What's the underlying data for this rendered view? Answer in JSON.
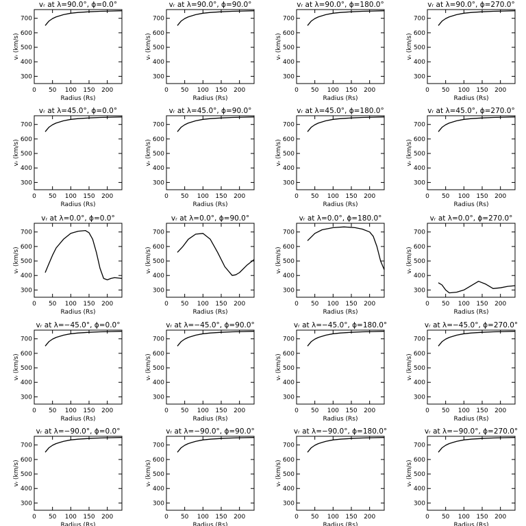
{
  "figure": {
    "xlabel": "Radius (Rs)",
    "ylabel": "vᵣ (km/s)",
    "xticks": [
      0,
      50,
      100,
      150,
      200
    ],
    "yticks": [
      300,
      400,
      500,
      600,
      700
    ],
    "xlim": [
      0,
      240
    ],
    "ylim": [
      250,
      760
    ]
  },
  "chart_data": [
    {
      "type": "line",
      "title": "vᵣ at λ=90.0°, ϕ=0.0°",
      "xlabel": "Radius (Rs)",
      "ylabel": "vᵣ (km/s)",
      "xlim": [
        0,
        240
      ],
      "ylim": [
        250,
        760
      ],
      "series": [
        {
          "x": [
            30,
            40,
            50,
            60,
            80,
            100,
            120,
            150,
            180,
            210,
            240
          ],
          "y": [
            650,
            680,
            698,
            710,
            725,
            735,
            740,
            745,
            748,
            750,
            752
          ]
        }
      ]
    },
    {
      "type": "line",
      "title": "vᵣ at λ=90.0°, ϕ=90.0°",
      "xlabel": "Radius (Rs)",
      "ylabel": "vᵣ (km/s)",
      "xlim": [
        0,
        240
      ],
      "ylim": [
        250,
        760
      ],
      "series": [
        {
          "x": [
            30,
            40,
            50,
            60,
            80,
            100,
            120,
            150,
            180,
            210,
            240
          ],
          "y": [
            650,
            680,
            698,
            710,
            725,
            735,
            740,
            745,
            748,
            750,
            752
          ]
        }
      ]
    },
    {
      "type": "line",
      "title": "vᵣ at λ=90.0°, ϕ=180.0°",
      "xlabel": "Radius (Rs)",
      "ylabel": "vᵣ (km/s)",
      "xlim": [
        0,
        240
      ],
      "ylim": [
        250,
        760
      ],
      "series": [
        {
          "x": [
            30,
            40,
            50,
            60,
            80,
            100,
            120,
            150,
            180,
            210,
            240
          ],
          "y": [
            650,
            680,
            698,
            710,
            725,
            735,
            740,
            745,
            748,
            750,
            752
          ]
        }
      ]
    },
    {
      "type": "line",
      "title": "vᵣ at λ=90.0°, ϕ=270.0°",
      "xlabel": "Radius (Rs)",
      "ylabel": "vᵣ (km/s)",
      "xlim": [
        0,
        240
      ],
      "ylim": [
        250,
        760
      ],
      "series": [
        {
          "x": [
            30,
            40,
            50,
            60,
            80,
            100,
            120,
            150,
            180,
            210,
            240
          ],
          "y": [
            650,
            680,
            698,
            710,
            725,
            735,
            740,
            745,
            748,
            750,
            752
          ]
        }
      ]
    },
    {
      "type": "line",
      "title": "vᵣ at λ=45.0°, ϕ=0.0°",
      "xlabel": "Radius (Rs)",
      "ylabel": "vᵣ (km/s)",
      "xlim": [
        0,
        240
      ],
      "ylim": [
        250,
        760
      ],
      "series": [
        {
          "x": [
            30,
            40,
            50,
            60,
            80,
            100,
            120,
            150,
            180,
            210,
            240
          ],
          "y": [
            650,
            680,
            698,
            710,
            725,
            735,
            740,
            745,
            748,
            750,
            752
          ]
        }
      ]
    },
    {
      "type": "line",
      "title": "vᵣ at λ=45.0°, ϕ=90.0°",
      "xlabel": "Radius (Rs)",
      "ylabel": "vᵣ (km/s)",
      "xlim": [
        0,
        240
      ],
      "ylim": [
        250,
        760
      ],
      "series": [
        {
          "x": [
            30,
            40,
            50,
            60,
            80,
            100,
            120,
            150,
            180,
            210,
            240
          ],
          "y": [
            650,
            680,
            698,
            710,
            725,
            735,
            740,
            745,
            748,
            750,
            752
          ]
        }
      ]
    },
    {
      "type": "line",
      "title": "vᵣ at λ=45.0°, ϕ=180.0°",
      "xlabel": "Radius (Rs)",
      "ylabel": "vᵣ (km/s)",
      "xlim": [
        0,
        240
      ],
      "ylim": [
        250,
        760
      ],
      "series": [
        {
          "x": [
            30,
            40,
            50,
            60,
            80,
            100,
            120,
            150,
            180,
            210,
            240
          ],
          "y": [
            650,
            680,
            698,
            710,
            725,
            735,
            740,
            745,
            748,
            750,
            752
          ]
        }
      ]
    },
    {
      "type": "line",
      "title": "vᵣ at λ=45.0°, ϕ=270.0°",
      "xlabel": "Radius (Rs)",
      "ylabel": "vᵣ (km/s)",
      "xlim": [
        0,
        240
      ],
      "ylim": [
        250,
        760
      ],
      "series": [
        {
          "x": [
            30,
            40,
            50,
            60,
            80,
            100,
            120,
            150,
            180,
            210,
            240
          ],
          "y": [
            650,
            680,
            698,
            710,
            725,
            735,
            740,
            745,
            748,
            750,
            752
          ]
        }
      ]
    },
    {
      "type": "line",
      "title": "vᵣ at λ=0.0°, ϕ=0.0°",
      "xlabel": "Radius (Rs)",
      "ylabel": "vᵣ (km/s)",
      "xlim": [
        0,
        240
      ],
      "ylim": [
        250,
        760
      ],
      "series": [
        {
          "x": [
            30,
            40,
            50,
            60,
            80,
            100,
            120,
            140,
            150,
            160,
            170,
            180,
            190,
            200,
            210,
            220,
            240
          ],
          "y": [
            420,
            480,
            540,
            590,
            650,
            690,
            705,
            710,
            695,
            650,
            560,
            450,
            380,
            370,
            380,
            385,
            380
          ]
        }
      ]
    },
    {
      "type": "line",
      "title": "vᵣ at λ=0.0°, ϕ=90.0°",
      "xlabel": "Radius (Rs)",
      "ylabel": "vᵣ (km/s)",
      "xlim": [
        0,
        240
      ],
      "ylim": [
        250,
        760
      ],
      "series": [
        {
          "x": [
            30,
            45,
            60,
            80,
            100,
            120,
            140,
            160,
            180,
            190,
            200,
            220,
            240
          ],
          "y": [
            560,
            600,
            650,
            685,
            690,
            650,
            560,
            460,
            400,
            405,
            420,
            470,
            510
          ]
        }
      ]
    },
    {
      "type": "line",
      "title": "vᵣ at λ=0.0°, ϕ=180.0°",
      "xlabel": "Radius (Rs)",
      "ylabel": "vᵣ (km/s)",
      "xlim": [
        0,
        240
      ],
      "ylim": [
        250,
        760
      ],
      "series": [
        {
          "x": [
            30,
            50,
            70,
            100,
            130,
            160,
            180,
            200,
            210,
            220,
            230,
            240
          ],
          "y": [
            640,
            690,
            715,
            730,
            735,
            730,
            720,
            700,
            670,
            600,
            500,
            440
          ]
        }
      ]
    },
    {
      "type": "line",
      "title": "vᵣ at λ=0.0°, ϕ=270.0°",
      "xlabel": "Radius (Rs)",
      "ylabel": "vᵣ (km/s)",
      "xlim": [
        0,
        240
      ],
      "ylim": [
        250,
        760
      ],
      "series": [
        {
          "x": [
            30,
            40,
            50,
            60,
            80,
            100,
            120,
            140,
            160,
            180,
            200,
            220,
            240
          ],
          "y": [
            350,
            335,
            300,
            280,
            285,
            300,
            330,
            360,
            340,
            310,
            315,
            325,
            330
          ]
        }
      ]
    },
    {
      "type": "line",
      "title": "vᵣ at λ=−45.0°, ϕ=0.0°",
      "xlabel": "Radius (Rs)",
      "ylabel": "vᵣ (km/s)",
      "xlim": [
        0,
        240
      ],
      "ylim": [
        250,
        760
      ],
      "series": [
        {
          "x": [
            30,
            40,
            50,
            60,
            80,
            100,
            120,
            150,
            180,
            210,
            240
          ],
          "y": [
            650,
            680,
            698,
            710,
            725,
            735,
            740,
            745,
            748,
            750,
            752
          ]
        }
      ]
    },
    {
      "type": "line",
      "title": "vᵣ at λ=−45.0°, ϕ=90.0°",
      "xlabel": "Radius (Rs)",
      "ylabel": "vᵣ (km/s)",
      "xlim": [
        0,
        240
      ],
      "ylim": [
        250,
        760
      ],
      "series": [
        {
          "x": [
            30,
            40,
            50,
            60,
            80,
            100,
            120,
            150,
            180,
            210,
            240
          ],
          "y": [
            650,
            680,
            698,
            710,
            725,
            735,
            740,
            745,
            748,
            750,
            752
          ]
        }
      ]
    },
    {
      "type": "line",
      "title": "vᵣ at λ=−45.0°, ϕ=180.0°",
      "xlabel": "Radius (Rs)",
      "ylabel": "vᵣ (km/s)",
      "xlim": [
        0,
        240
      ],
      "ylim": [
        250,
        760
      ],
      "series": [
        {
          "x": [
            30,
            40,
            50,
            60,
            80,
            100,
            120,
            150,
            180,
            210,
            240
          ],
          "y": [
            650,
            680,
            698,
            710,
            725,
            735,
            740,
            745,
            748,
            750,
            752
          ]
        }
      ]
    },
    {
      "type": "line",
      "title": "vᵣ at λ=−45.0°, ϕ=270.0°",
      "xlabel": "Radius (Rs)",
      "ylabel": "vᵣ (km/s)",
      "xlim": [
        0,
        240
      ],
      "ylim": [
        250,
        760
      ],
      "series": [
        {
          "x": [
            30,
            40,
            50,
            60,
            80,
            100,
            120,
            150,
            180,
            210,
            240
          ],
          "y": [
            650,
            680,
            698,
            710,
            725,
            735,
            740,
            745,
            748,
            750,
            752
          ]
        }
      ]
    },
    {
      "type": "line",
      "title": "vᵣ at λ=−90.0°, ϕ=0.0°",
      "xlabel": "Radius (Rs)",
      "ylabel": "vᵣ (km/s)",
      "xlim": [
        0,
        240
      ],
      "ylim": [
        250,
        760
      ],
      "series": [
        {
          "x": [
            30,
            40,
            50,
            60,
            80,
            100,
            120,
            150,
            180,
            210,
            240
          ],
          "y": [
            650,
            680,
            698,
            710,
            725,
            735,
            740,
            745,
            748,
            750,
            752
          ]
        }
      ]
    },
    {
      "type": "line",
      "title": "vᵣ at λ=−90.0°, ϕ=90.0°",
      "xlabel": "Radius (Rs)",
      "ylabel": "vᵣ (km/s)",
      "xlim": [
        0,
        240
      ],
      "ylim": [
        250,
        760
      ],
      "series": [
        {
          "x": [
            30,
            40,
            50,
            60,
            80,
            100,
            120,
            150,
            180,
            210,
            240
          ],
          "y": [
            650,
            680,
            698,
            710,
            725,
            735,
            740,
            745,
            748,
            750,
            752
          ]
        }
      ]
    },
    {
      "type": "line",
      "title": "vᵣ at λ=−90.0°, ϕ=180.0°",
      "xlabel": "Radius (Rs)",
      "ylabel": "vᵣ (km/s)",
      "xlim": [
        0,
        240
      ],
      "ylim": [
        250,
        760
      ],
      "series": [
        {
          "x": [
            30,
            40,
            50,
            60,
            80,
            100,
            120,
            150,
            180,
            210,
            240
          ],
          "y": [
            650,
            680,
            698,
            710,
            725,
            735,
            740,
            745,
            748,
            750,
            752
          ]
        }
      ]
    },
    {
      "type": "line",
      "title": "vᵣ at λ=−90.0°, ϕ=270.0°",
      "xlabel": "Radius (Rs)",
      "ylabel": "vᵣ (km/s)",
      "xlim": [
        0,
        240
      ],
      "ylim": [
        250,
        760
      ],
      "series": [
        {
          "x": [
            30,
            40,
            50,
            60,
            80,
            100,
            120,
            150,
            180,
            210,
            240
          ],
          "y": [
            650,
            680,
            698,
            710,
            725,
            735,
            740,
            745,
            748,
            750,
            752
          ]
        }
      ]
    }
  ]
}
